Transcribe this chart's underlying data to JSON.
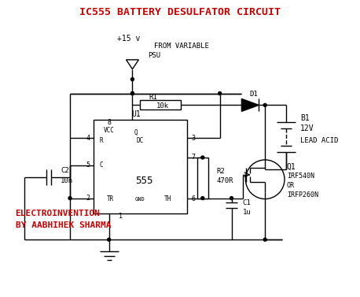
{
  "title": "IC555 BATTERY DESULFATOR CIRCUIT",
  "title_color": "#cc0000",
  "title_fontsize": 9.5,
  "background_color": "#ffffff",
  "line_color": "#000000",
  "watermark_line1": "ELECTROINVENTION",
  "watermark_line2": "BY AABHIHEK SHARMA",
  "watermark_color": "#cc0000",
  "watermark_fontsize": 8,
  "labels": {
    "U1": "U1",
    "R1_label": "R1",
    "R1_val": "10k",
    "R2_label": "R2",
    "R2_val": "470R",
    "C1_label": "C1",
    "C1_val": "1u",
    "C2_label": "C2",
    "C2_val": "10n",
    "D1": "D1",
    "B1": "B1",
    "B1_v": "12V",
    "B1_t": "LEAD ACID",
    "Q1": "Q1",
    "Q1_v1": "IRF540N",
    "Q1_v2": "OR",
    "Q1_v3": "IRFP260N",
    "ic555": "555",
    "vcc": "+15 v",
    "psu1": "FROM VARIABLE",
    "psu2": "PSU",
    "p_R": "R",
    "p_VCC": "VCC",
    "p_Q": "Q",
    "p_DC": "DC",
    "p_C": "C",
    "p_TR": "TR",
    "p_GND": "GND",
    "p_TH": "TH",
    "p3": "3",
    "p4": "4",
    "p5": "5",
    "p6": "6",
    "p7": "7",
    "p8": "8",
    "p2": "2",
    "p1": "1"
  }
}
